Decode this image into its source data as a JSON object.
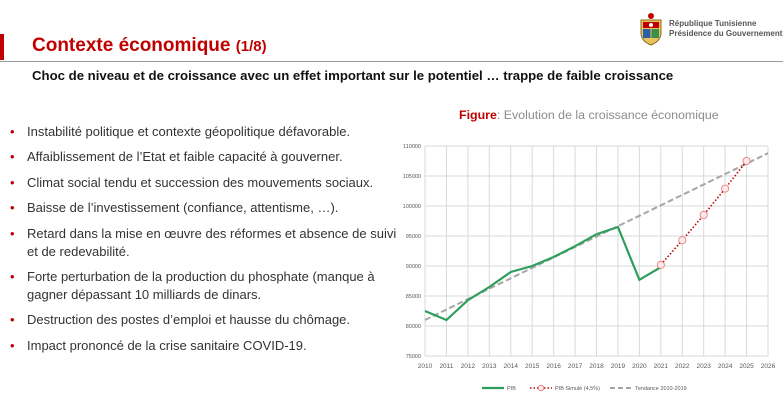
{
  "header": {
    "title": "Contexte économique",
    "title_part": "(1/8)",
    "subtitle": "Choc de niveau et de croissance avec un effet important sur le potentiel … trappe de faible croissance"
  },
  "logo": {
    "line1": "République Tunisienne",
    "line2": "Présidence du Gouvernement"
  },
  "bullets": [
    "Instabilité politique et contexte géopolitique défavorable.",
    "Affaiblissement de l’Etat et faible capacité à gouverner.",
    "Climat social tendu et succession des mouvements sociaux.",
    "Baisse de l’investissement (confiance, attentisme, …).",
    "Retard dans la mise en œuvre des réformes et absence de suivi et de redevabilité.",
    "Forte perturbation de la production du phosphate (manque à gagner dépassant 10 milliards de dinars.",
    "Destruction des postes d’emploi et hausse du chômage.",
    "Impact prononcé de la crise sanitaire COVID-19."
  ],
  "figure": {
    "label": "Figure",
    "caption": ": Evolution de la croissance économique"
  },
  "chart_data": {
    "type": "line",
    "x": [
      2010,
      2011,
      2012,
      2013,
      2014,
      2015,
      2016,
      2017,
      2018,
      2019,
      2020,
      2021,
      2022,
      2023,
      2024,
      2025,
      2026
    ],
    "ylim": [
      75000,
      110000
    ],
    "yticks": [
      75000,
      80000,
      85000,
      90000,
      95000,
      100000,
      105000,
      110000
    ],
    "grid": true,
    "legend_position": "bottom",
    "colors": {
      "pib": "#2e9e5b",
      "simule": "#c00000",
      "tendance": "#a6a6a6"
    },
    "series": [
      {
        "name": "PIB",
        "style": "solid",
        "x": [
          2010,
          2011,
          2012,
          2013,
          2014,
          2015,
          2016,
          2017,
          2018,
          2019,
          2020,
          2021
        ],
        "values": [
          82500,
          81000,
          84300,
          86500,
          89000,
          90000,
          91500,
          93300,
          95300,
          96500,
          87700,
          89800
        ]
      },
      {
        "name": "PIB Simulé (4,5%)",
        "style": "dotted-markers",
        "x": [
          2021,
          2022,
          2023,
          2024,
          2025
        ],
        "values": [
          90200,
          94300,
          98500,
          102900,
          107500
        ]
      },
      {
        "name": "Tendance 2010-2019",
        "style": "dashed",
        "x": [
          2010,
          2026
        ],
        "values": [
          81000,
          108800
        ]
      }
    ]
  }
}
